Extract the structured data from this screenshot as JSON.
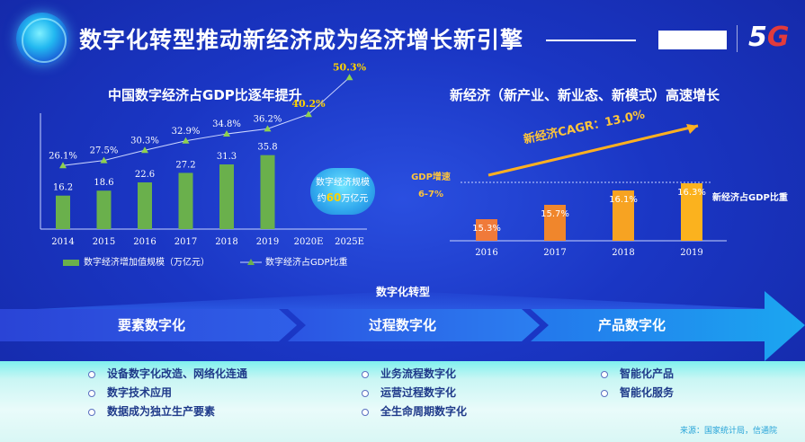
{
  "header": {
    "title": "数字化转型推动新经济成为经济增长新引擎",
    "brand": {
      "five": "5",
      "g": "G"
    }
  },
  "left_chart": {
    "title": "中国数字经济占GDP比逐年提升",
    "legend_bar": "数字经济增加值规模（万亿元）",
    "legend_line": "数字经济占GDP比重",
    "annotation": {
      "line1": "数字经济规模",
      "prefix": "约",
      "amount": "60",
      "suffix": "万亿元"
    }
  },
  "right_chart": {
    "title": "新经济（新产业、新业态、新模式）高速增长",
    "growth": "新经济CAGR：13.0%",
    "gdp_label_1": "GDP增速",
    "gdp_label_2": "6-7%",
    "right_note": "新经济占GDP比重"
  },
  "transformation": {
    "label": "数字化转型",
    "stages": [
      "要素数字化",
      "过程数字化",
      "产品数字化"
    ]
  },
  "bullets": {
    "col1": [
      "设备数字化改造、网络化连通",
      "数字技术应用",
      "数据成为独立生产要素"
    ],
    "col2": [
      "业务流程数字化",
      "运营过程数字化",
      "全生命周期数字化"
    ],
    "col3": [
      "智能化产品",
      "智能化服务"
    ]
  },
  "source": "来源：国家统计局，信通院",
  "chart_data": [
    {
      "type": "bar",
      "title": "中国数字经济占GDP比逐年提升",
      "categories": [
        "2014",
        "2015",
        "2016",
        "2017",
        "2018",
        "2019",
        "2020E",
        "2025E"
      ],
      "series": [
        {
          "name": "数字经济增加值规模（万亿元）",
          "type": "bar",
          "values": [
            16.2,
            18.6,
            22.6,
            27.2,
            31.3,
            35.8,
            null,
            null
          ],
          "color": "#6ab04c"
        },
        {
          "name": "数字经济占GDP比重",
          "type": "line",
          "values": [
            26.1,
            27.5,
            30.3,
            32.9,
            34.8,
            36.2,
            40.2,
            50.3
          ],
          "unit": "%",
          "color": "#8fd14f"
        }
      ]
    },
    {
      "type": "bar",
      "title": "新经济（新产业、新业态、新模式）高速增长",
      "categories": [
        "2016",
        "2017",
        "2018",
        "2019"
      ],
      "series": [
        {
          "name": "新经济占GDP比重",
          "values": [
            15.3,
            15.7,
            16.1,
            16.3
          ],
          "unit": "%"
        }
      ],
      "colors": [
        "#f07a3a",
        "#f0862c",
        "#f7a322",
        "#fbb21e"
      ]
    }
  ]
}
